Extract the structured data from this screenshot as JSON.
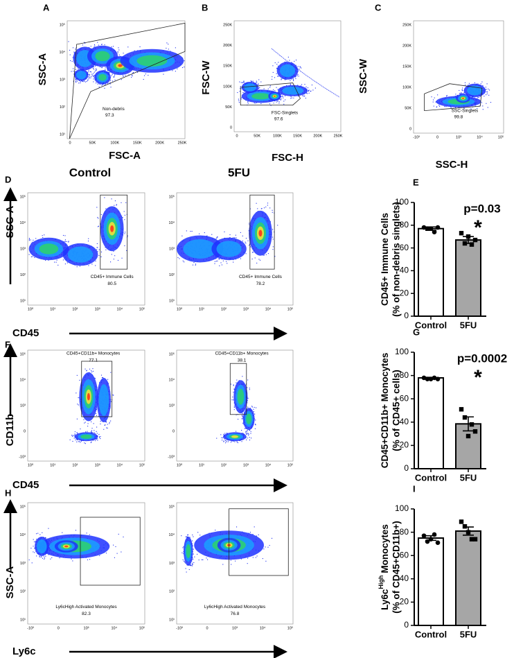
{
  "flow_panels": [
    {
      "letter": "A",
      "xlabel": "FSC-A",
      "ylabel": "SSC-A",
      "xticks": [
        "0",
        "50K",
        "100K",
        "150K",
        "200K",
        "250K"
      ],
      "yticks": [
        "10⁵",
        "10⁴",
        "10³",
        "10²",
        "10¹"
      ],
      "gate": "Non-debris",
      "gate_pct": "97.3"
    },
    {
      "letter": "B",
      "xlabel": "FSC-H",
      "ylabel": "FSC-W",
      "xticks": [
        "0",
        "50K",
        "100K",
        "150K",
        "200K",
        "250K"
      ],
      "yticks": [
        "250K",
        "200K",
        "150K",
        "100K",
        "50K",
        "0"
      ],
      "gate": "FSC-Singlets",
      "gate_pct": "97.6"
    },
    {
      "letter": "C",
      "xlabel": "SSC-H",
      "ylabel": "SSC-W",
      "xticks": [
        "-10³",
        "0",
        "10³",
        "10⁴",
        "10⁵"
      ],
      "yticks": [
        "250K",
        "200K",
        "150K",
        "100K",
        "50K",
        "0"
      ],
      "gate": "SSC-Singlets",
      "gate_pct": "99.8"
    }
  ],
  "column_titles": [
    "Control",
    "5FU"
  ],
  "flow_rows": [
    {
      "letter": "D",
      "xlabel": "CD45",
      "ylabel": "SSC-A",
      "xticks": [
        "10⁰",
        "10¹",
        "10²",
        "10³",
        "10⁴",
        "10⁵"
      ],
      "yticks": [
        "10⁵",
        "10⁴",
        "10³",
        "10²",
        "10¹"
      ],
      "gate": "CD45+ Immune Cells",
      "gate_pcts": [
        "80.5",
        "78.2"
      ]
    },
    {
      "letter": "F",
      "xlabel": "CD45",
      "ylabel": "CD11b",
      "xticks": [
        "10⁰",
        "10¹",
        "10²",
        "10³",
        "10⁴",
        "10⁵"
      ],
      "yticks": [
        "10⁵",
        "10⁴",
        "10³",
        "0",
        "-10³"
      ],
      "gate": "CD45+CD11b+ Monocytes",
      "gate_pcts": [
        "77.1",
        "38.1"
      ]
    },
    {
      "letter": "H",
      "xlabel": "Ly6c",
      "ylabel": "SSC-A",
      "xticks": [
        "-10³",
        "0",
        "10³",
        "10⁴",
        "10⁵"
      ],
      "yticks": [
        "10⁵",
        "10⁴",
        "10³",
        "10²",
        "10¹"
      ],
      "gate": "Ly6cHigh Activated Monocytes",
      "gate_pcts": [
        "82.3",
        "76.8"
      ]
    }
  ],
  "chart_data": [
    {
      "type": "bar",
      "letter": "E",
      "ylabel": "CD45+ Immune Cells",
      "ylabel2": "(% of non-debris singlets)",
      "categories": [
        "Control",
        "5FU"
      ],
      "values": [
        77,
        67
      ],
      "errors": [
        1.5,
        3
      ],
      "colors": [
        "#ffffff",
        "#a6a6a6"
      ],
      "points": [
        [
          78,
          77,
          77,
          74,
          78
        ],
        [
          73,
          64,
          70,
          63,
          67
        ]
      ],
      "ylim": [
        0,
        100
      ],
      "yticks": [
        0,
        20,
        40,
        60,
        80,
        100
      ],
      "annotation": "p=0.03",
      "star": "*"
    },
    {
      "type": "bar",
      "letter": "G",
      "ylabel": "CD45+CD11b+ Monocytes",
      "ylabel2": "(% of CD45+ cells)",
      "categories": [
        "Control",
        "5FU"
      ],
      "values": [
        78,
        38.5
      ],
      "errors": [
        0.5,
        6
      ],
      "colors": [
        "#ffffff",
        "#a6a6a6"
      ],
      "points": [
        [
          78,
          77,
          77,
          78,
          77
        ],
        [
          51,
          44,
          28,
          38,
          32
        ]
      ],
      "ylim": [
        0,
        100
      ],
      "yticks": [
        0,
        20,
        40,
        60,
        80,
        100
      ],
      "annotation": "p=0.0002",
      "star": "*"
    },
    {
      "type": "bar",
      "letter": "I",
      "ylabel": "Ly6c",
      "ylabel_sup": "High",
      "ylabel_rest": "Monocytes",
      "ylabel2": "(% of CD45+CD11b+)",
      "categories": [
        "Control",
        "5FU"
      ],
      "values": [
        75,
        81
      ],
      "errors": [
        2,
        3.5
      ],
      "colors": [
        "#ffffff",
        "#a6a6a6"
      ],
      "points": [
        [
          77,
          72,
          74,
          78,
          71
        ],
        [
          89,
          85,
          80,
          74,
          74
        ]
      ],
      "ylim": [
        0,
        100
      ],
      "yticks": [
        0,
        20,
        40,
        60,
        80,
        100
      ]
    }
  ]
}
